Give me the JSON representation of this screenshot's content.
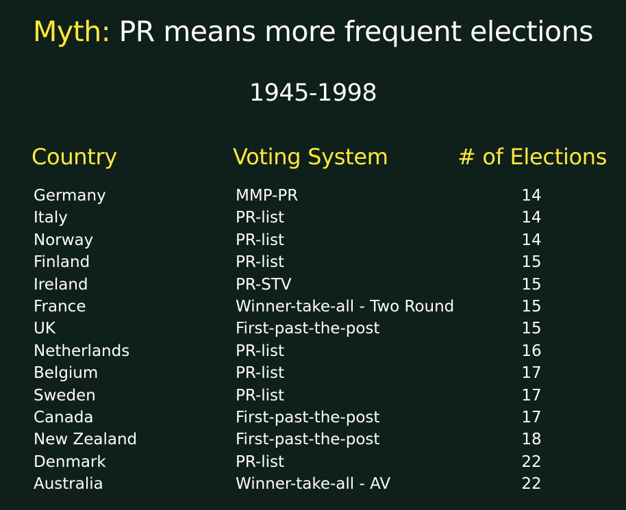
{
  "title": {
    "prefix": "Myth:",
    "text": " PR means more frequent elections"
  },
  "subtitle": "1945-1998",
  "colors": {
    "background": "#0f1f1b",
    "accent": "#ffea2e",
    "text": "#ffffff"
  },
  "chart_data": {
    "type": "table",
    "title": "Myth: PR means more frequent elections",
    "subtitle": "1945-1998",
    "columns": [
      "Country",
      "Voting System",
      "# of Elections"
    ],
    "rows": [
      {
        "country": "Germany",
        "system": "MMP-PR",
        "elections": 14
      },
      {
        "country": "Italy",
        "system": "PR-list",
        "elections": 14
      },
      {
        "country": "Norway",
        "system": "PR-list",
        "elections": 14
      },
      {
        "country": "Finland",
        "system": "PR-list",
        "elections": 15
      },
      {
        "country": "Ireland",
        "system": "PR-STV",
        "elections": 15
      },
      {
        "country": "France",
        "system": "Winner-take-all - Two Round",
        "elections": 15
      },
      {
        "country": "UK",
        "system": "First-past-the-post",
        "elections": 15
      },
      {
        "country": "Netherlands",
        "system": "PR-list",
        "elections": 16
      },
      {
        "country": "Belgium",
        "system": "PR-list",
        "elections": 17
      },
      {
        "country": "Sweden",
        "system": "PR-list",
        "elections": 17
      },
      {
        "country": "Canada",
        "system": "First-past-the-post",
        "elections": 17
      },
      {
        "country": "New Zealand",
        "system": "First-past-the-post",
        "elections": 18
      },
      {
        "country": "Denmark",
        "system": "PR-list",
        "elections": 22
      },
      {
        "country": "Australia",
        "system": "Winner-take-all - AV",
        "elections": 22
      }
    ]
  }
}
